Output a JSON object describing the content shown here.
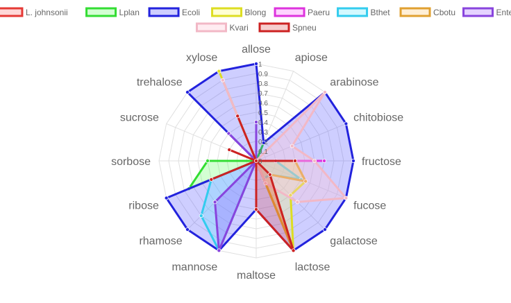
{
  "chart_data": {
    "type": "radar",
    "title": "",
    "axes": [
      "allose",
      "apiose",
      "arabinose",
      "chitobiose",
      "fructose",
      "fucose",
      "galactose",
      "lactose",
      "maltose",
      "mannose",
      "rhamose",
      "ribose",
      "sorbose",
      "sucrose",
      "trehalose",
      "xylose"
    ],
    "r_range": [
      0,
      1
    ],
    "ticks": [
      "0",
      "0.1",
      "0.2",
      "0.3",
      "0.4",
      "0.5",
      "0.6",
      "0.7",
      "0.8",
      "0.9",
      "1"
    ],
    "grid": true,
    "legend_position": "top",
    "series": [
      {
        "name": "L. johnsonii",
        "color": "#e53935",
        "fill": "rgba(255,99,99,0.25)",
        "values": [
          0,
          0,
          0,
          0,
          0,
          0,
          0,
          0,
          0,
          0,
          0,
          0,
          0,
          0,
          0,
          0
        ]
      },
      {
        "name": "Lplan",
        "color": "#33dd33",
        "fill": "rgba(80,255,80,0.25)",
        "values": [
          0,
          0.2,
          0,
          0,
          0,
          0,
          0,
          1.0,
          0,
          0,
          0,
          0.75,
          0.5,
          0,
          0,
          0
        ]
      },
      {
        "name": "Ecoli",
        "color": "#2222dd",
        "fill": "rgba(60,60,255,0.25)",
        "values": [
          1.0,
          0.2,
          1.0,
          1.0,
          1.0,
          1.0,
          1.0,
          1.0,
          0.5,
          1.0,
          1.0,
          1.0,
          0,
          0,
          1.0,
          1.0
        ]
      },
      {
        "name": "Blong",
        "color": "#dddd22",
        "fill": "rgba(255,255,80,0.25)",
        "values": [
          0,
          0,
          0,
          0,
          0.4,
          0.55,
          0.5,
          1.0,
          0,
          0,
          0,
          0,
          0,
          0,
          0,
          1.0
        ]
      },
      {
        "name": "Paeru",
        "color": "#dd33dd",
        "fill": "rgba(255,80,255,0.25)",
        "values": [
          0,
          0,
          0,
          0,
          0.7,
          0,
          0,
          0,
          0,
          0,
          0,
          0,
          0,
          0,
          0,
          0
        ]
      },
      {
        "name": "Bthet",
        "color": "#33ccee",
        "fill": "rgba(80,230,255,0.25)",
        "values": [
          0.4,
          0,
          0,
          0,
          0.2,
          0.5,
          0.2,
          0.2,
          0,
          1.0,
          0.8,
          0.5,
          0,
          0,
          0,
          0
        ]
      },
      {
        "name": "Cbotu",
        "color": "#e0a030",
        "fill": "rgba(255,190,90,0.25)",
        "values": [
          0,
          0,
          0,
          0,
          0.4,
          0.55,
          0.2,
          1.0,
          0,
          0,
          0,
          0,
          0,
          0,
          0,
          0
        ]
      },
      {
        "name": "Enter",
        "color": "#8844dd",
        "fill": "rgba(150,80,255,0.25)",
        "values": [
          0.4,
          0,
          0,
          0,
          0.2,
          0,
          0,
          0,
          0,
          1.0,
          0.6,
          0,
          0,
          0,
          0.4,
          0
        ]
      },
      {
        "name": "Kvari",
        "color": "#f2b8c6",
        "fill": "rgba(255,200,215,0.35)",
        "values": [
          0,
          0,
          1.0,
          0.4,
          0.6,
          1.0,
          0.6,
          0.25,
          0,
          0,
          0,
          0,
          0,
          0,
          0,
          0.9
        ]
      },
      {
        "name": "Spneu",
        "color": "#cc2222",
        "fill": "rgba(220,60,60,0.25)",
        "values": [
          0,
          0,
          0,
          0,
          0.4,
          0,
          0.2,
          1.0,
          0.5,
          0,
          0,
          0.5,
          0,
          0.3,
          0,
          0.5
        ]
      }
    ]
  }
}
